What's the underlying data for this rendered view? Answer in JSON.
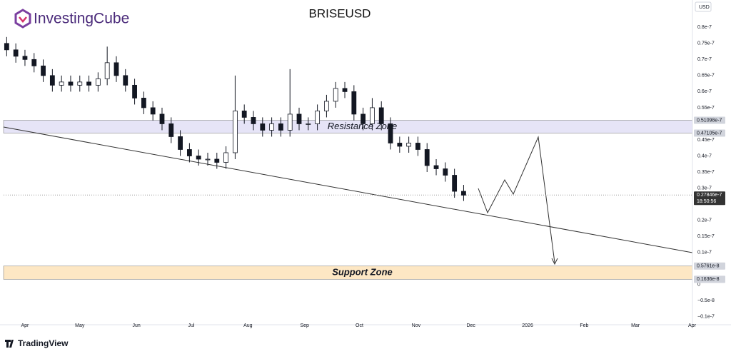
{
  "header": {
    "brand": "InvestingCube"
  },
  "footer": {
    "brand": "TradingView"
  },
  "chart_data": {
    "type": "candlestick",
    "title": "BRISEUSD",
    "currency": "USD",
    "x": [
      -10,
      -5,
      0,
      5,
      10,
      15,
      20,
      25,
      30,
      35,
      40,
      45,
      50,
      55,
      60,
      65,
      70,
      75,
      80,
      85,
      90,
      95,
      100,
      105,
      110,
      115,
      120,
      125,
      130,
      135,
      140,
      145,
      150,
      155,
      160,
      165,
      170,
      175,
      180,
      185,
      190,
      195,
      200,
      205,
      210,
      215,
      220,
      225,
      230,
      235,
      240
    ],
    "open": [
      7.5e-08,
      7.3e-08,
      7.1e-08,
      7e-08,
      6.8e-08,
      6.5e-08,
      6.2e-08,
      6.3e-08,
      6.2e-08,
      6.3e-08,
      6.2e-08,
      6.4e-08,
      6.9e-08,
      6.5e-08,
      6.2e-08,
      5.8e-08,
      5.5e-08,
      5.3e-08,
      5e-08,
      4.6e-08,
      4.2e-08,
      4e-08,
      3.9e-08,
      3.9e-08,
      3.8e-08,
      4.1e-08,
      5.4e-08,
      5.2e-08,
      5e-08,
      4.8e-08,
      5e-08,
      4.8e-08,
      5.3e-08,
      5e-08,
      5e-08,
      5.4e-08,
      5.7e-08,
      6.1e-08,
      6e-08,
      5.3e-08,
      5e-08,
      5.5e-08,
      5e-08,
      4.4e-08,
      4.3e-08,
      4.4e-08,
      4.2e-08,
      3.7e-08,
      3.6e-08,
      3.4e-08,
      2.9e-08
    ],
    "high": [
      7.7e-08,
      7.5e-08,
      7.3e-08,
      7.2e-08,
      7e-08,
      6.7e-08,
      6.5e-08,
      6.5e-08,
      6.5e-08,
      6.5e-08,
      6.6e-08,
      7.4e-08,
      7.1e-08,
      6.7e-08,
      6.4e-08,
      6e-08,
      5.7e-08,
      5.5e-08,
      5.2e-08,
      4.8e-08,
      4.4e-08,
      4.2e-08,
      4.1e-08,
      4.1e-08,
      4.3e-08,
      6.5e-08,
      5.6e-08,
      5.4e-08,
      5.2e-08,
      5.2e-08,
      5.2e-08,
      6.7e-08,
      5.5e-08,
      5.2e-08,
      5.6e-08,
      5.9e-08,
      6.3e-08,
      6.3e-08,
      6.2e-08,
      5.5e-08,
      5.8e-08,
      5.7e-08,
      5.2e-08,
      4.6e-08,
      4.6e-08,
      4.6e-08,
      4.4e-08,
      3.9e-08,
      3.8e-08,
      3.6e-08,
      3.1e-08
    ],
    "low": [
      7.1e-08,
      6.9e-08,
      6.8e-08,
      6.6e-08,
      6.3e-08,
      6e-08,
      6e-08,
      6e-08,
      6e-08,
      6e-08,
      6e-08,
      6.2e-08,
      6.3e-08,
      6e-08,
      5.6e-08,
      5.3e-08,
      5.1e-08,
      4.8e-08,
      4.4e-08,
      4e-08,
      3.8e-08,
      3.7e-08,
      3.7e-08,
      3.6e-08,
      3.6e-08,
      3.9e-08,
      5e-08,
      4.8e-08,
      4.6e-08,
      4.6e-08,
      4.6e-08,
      4.6e-08,
      4.8e-08,
      4.8e-08,
      4.8e-08,
      5.2e-08,
      5.5e-08,
      5.8e-08,
      5.1e-08,
      4.8e-08,
      4.8e-08,
      4.8e-08,
      4.2e-08,
      4.1e-08,
      4.1e-08,
      4e-08,
      3.5e-08,
      3.4e-08,
      3.2e-08,
      2.7e-08,
      2.6e-08
    ],
    "close": [
      7.3e-08,
      7.1e-08,
      7e-08,
      6.8e-08,
      6.5e-08,
      6.2e-08,
      6.3e-08,
      6.2e-08,
      6.3e-08,
      6.2e-08,
      6.4e-08,
      6.9e-08,
      6.5e-08,
      6.2e-08,
      5.8e-08,
      5.5e-08,
      5.3e-08,
      5e-08,
      4.6e-08,
      4.2e-08,
      4e-08,
      3.9e-08,
      3.9e-08,
      3.8e-08,
      4.1e-08,
      5.4e-08,
      5.2e-08,
      5e-08,
      4.8e-08,
      5e-08,
      4.8e-08,
      5.3e-08,
      5e-08,
      5e-08,
      5.4e-08,
      5.7e-08,
      6.1e-08,
      6e-08,
      5.3e-08,
      5e-08,
      5.5e-08,
      5e-08,
      4.4e-08,
      4.3e-08,
      4.4e-08,
      4.2e-08,
      3.7e-08,
      3.6e-08,
      3.4e-08,
      2.9e-08,
      2.78e-08
    ],
    "up_color": "#ffffff",
    "down_color": "#131722",
    "xlim": [
      -11.7,
      365.2
    ],
    "xticks": [
      {
        "value": 0,
        "label": "Apr"
      },
      {
        "value": 30,
        "label": "May"
      },
      {
        "value": 61,
        "label": "Jun"
      },
      {
        "value": 91,
        "label": "Jul"
      },
      {
        "value": 122,
        "label": "Aug"
      },
      {
        "value": 153,
        "label": "Sep"
      },
      {
        "value": 183,
        "label": "Oct"
      },
      {
        "value": 214,
        "label": "Nov"
      },
      {
        "value": 244,
        "label": "Dec"
      },
      {
        "value": 275,
        "label": "2026"
      },
      {
        "value": 306,
        "label": "Feb"
      },
      {
        "value": 334,
        "label": "Mar"
      },
      {
        "value": 365,
        "label": "Apr"
      }
    ],
    "ylim": [
      -1.25e-08,
      8.85e-08
    ],
    "yticks": [
      {
        "value": -1e-08,
        "label": "−0.1e-7"
      },
      {
        "value": -5e-09,
        "label": "−0.5e-8"
      },
      0,
      {
        "value": 1e-08,
        "label": "0.1e-7"
      },
      {
        "value": 1.5e-08,
        "label": "0.15e-7"
      },
      {
        "value": 2e-08,
        "label": "0.2e-7"
      },
      {
        "value": 3e-08,
        "label": "0.3e-7"
      },
      {
        "value": 3.5e-08,
        "label": "0.35e-7"
      },
      {
        "value": 4e-08,
        "label": "0.4e-7"
      },
      {
        "value": 4.5e-08,
        "label": "0.45e-7"
      },
      {
        "value": 5.5e-08,
        "label": "0.55e-7"
      },
      {
        "value": 6e-08,
        "label": "0.6e-7"
      },
      {
        "value": 6.5e-08,
        "label": "0.65e-7"
      },
      {
        "value": 7e-08,
        "label": "0.7e-7"
      },
      {
        "value": 7.5e-08,
        "label": "0.75e-7"
      },
      {
        "value": 8e-08,
        "label": "0.8e-7"
      }
    ],
    "zones": [
      {
        "name": "Resistance Zone",
        "color": "#e6e4f7",
        "low": {
          "value": 4.7105e-08,
          "label": "0.47105e-7"
        },
        "high": {
          "value": 5.1098e-08,
          "label": "0.51098e-7"
        }
      },
      {
        "name": "Support Zone",
        "color": "#fde7c4",
        "low": {
          "value": 1.636e-09,
          "label": "0.1636e-8"
        },
        "high": {
          "value": 5.761e-09,
          "label": "0.5761e-8"
        }
      }
    ],
    "current_price": {
      "value": 2.7846e-08,
      "label": "0.27846e-7"
    },
    "countdown": "18:50:56"
  }
}
